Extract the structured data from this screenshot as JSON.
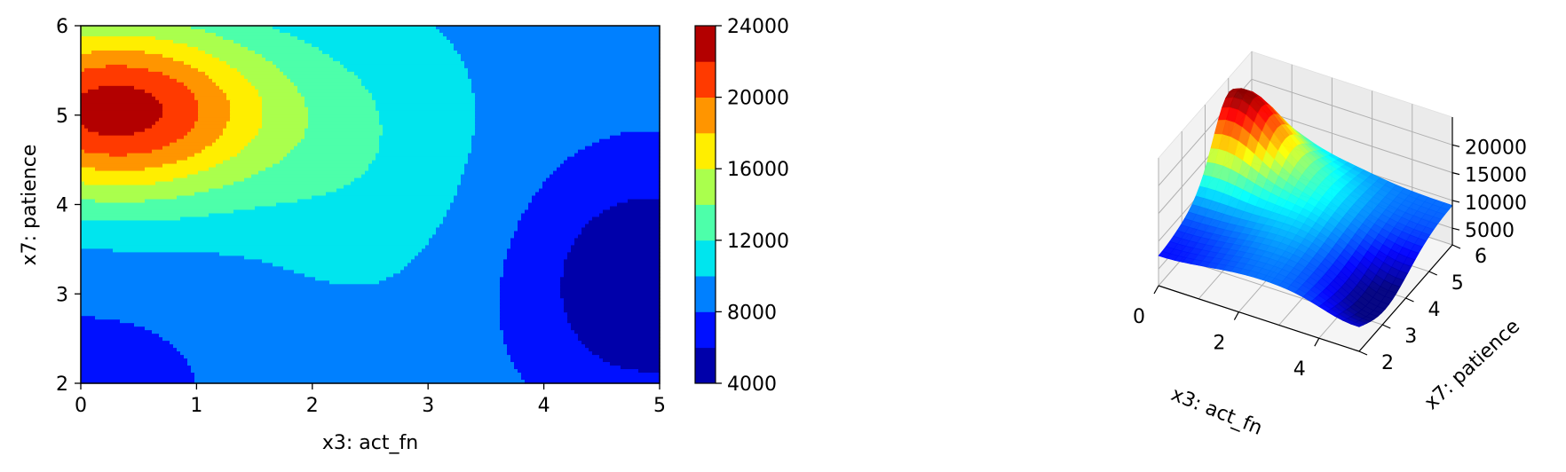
{
  "chart_data": [
    {
      "type": "heatmap",
      "subtype": "filled-contour",
      "xlabel": "x3: act_fn",
      "ylabel": "x7: patience",
      "xlim": [
        0,
        5
      ],
      "ylim": [
        2,
        6
      ],
      "x_ticks": [
        "0",
        "1",
        "2",
        "3",
        "4",
        "5"
      ],
      "y_ticks": [
        "2",
        "3",
        "4",
        "5",
        "6"
      ],
      "colormap": "jet",
      "colorbar": {
        "range": [
          4000,
          24000
        ],
        "levels": [
          4000,
          6000,
          8000,
          10000,
          12000,
          14000,
          16000,
          18000,
          20000,
          22000,
          24000
        ],
        "tick_labels": [
          "4000",
          "8000",
          "12000",
          "16000",
          "20000",
          "24000"
        ],
        "band_colors": [
          "#0000aa",
          "#0010ff",
          "#0080ff",
          "#00e5ee",
          "#4dffaa",
          "#aaff4d",
          "#ffee00",
          "#ff9500",
          "#ff3a00",
          "#b30000"
        ]
      },
      "features": [
        {
          "kind": "maximum",
          "x": 0.3,
          "y": 5.05,
          "value": 23000
        },
        {
          "kind": "minimum",
          "x": 4.9,
          "y": 3.1,
          "value": 5000
        }
      ],
      "grid": false
    },
    {
      "type": "surface",
      "xlabel": "x3: act_fn",
      "ylabel": "x7: patience",
      "x_ticks": [
        "0",
        "2",
        "4"
      ],
      "y_ticks": [
        "2",
        "3",
        "4",
        "5",
        "6"
      ],
      "z_ticks": [
        "5000",
        "10000",
        "15000",
        "20000"
      ],
      "colormap": "jet",
      "grid": true
    }
  ]
}
